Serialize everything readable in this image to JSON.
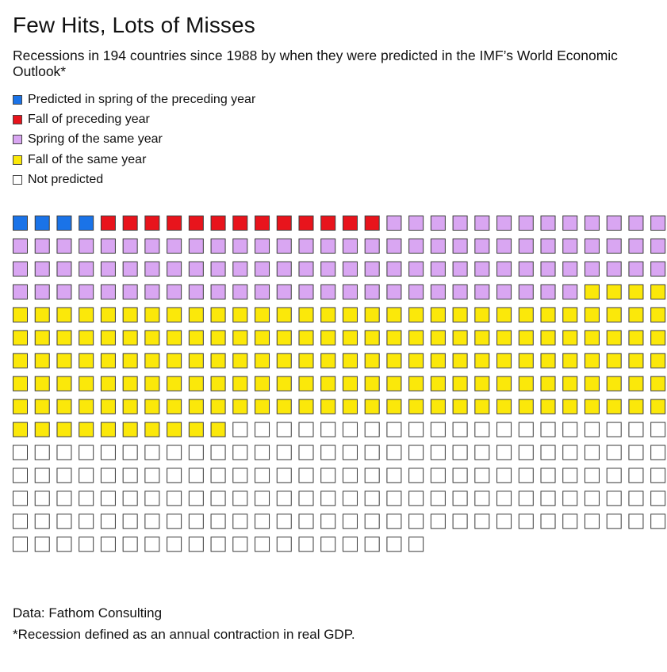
{
  "title": "Few Hits, Lots of Misses",
  "subtitle": "Recessions in 194 countries since 1988 by when they were predicted in the IMF’s World Economic Outlook*",
  "legend": [
    {
      "label": "Predicted in spring of the preceding year",
      "color": "#1a73e8"
    },
    {
      "label": "Fall of preceding year",
      "color": "#e8141c"
    },
    {
      "label": "Spring of the same year",
      "color": "#d9a6f2"
    },
    {
      "label": "Fall of the same year",
      "color": "#fbe80a"
    },
    {
      "label": "Not predicted",
      "color": "#ffffff"
    }
  ],
  "chart_data": {
    "type": "waffle",
    "title": "Few Hits, Lots of Misses",
    "unit": "recession",
    "columns_per_row": 30,
    "categories": [
      "Predicted in spring of the preceding year",
      "Fall of preceding year",
      "Spring of the same year",
      "Fall of the same year",
      "Not predicted"
    ],
    "values": [
      4,
      13,
      99,
      164,
      159
    ],
    "total": 439
  },
  "footer": {
    "source": "Data: Fathom Consulting",
    "note": "*Recession defined as an annual contraction in real GDP."
  }
}
